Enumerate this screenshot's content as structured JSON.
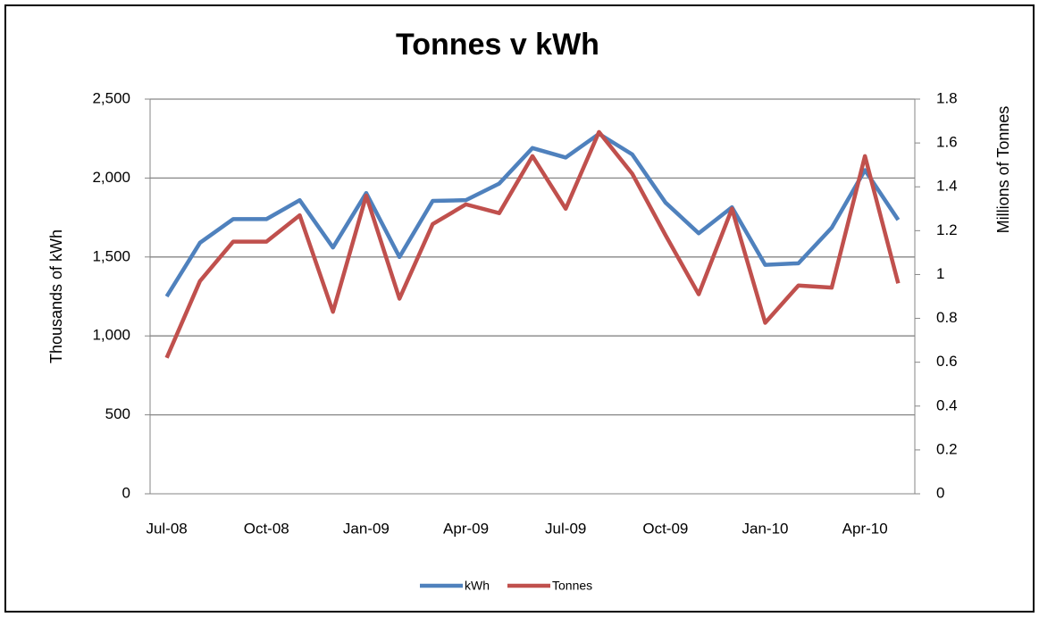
{
  "chart_data": {
    "type": "line",
    "title": "Tonnes v kWh",
    "y_label": "Thousands of kWh",
    "y2_label": "Millions of Tonnes",
    "categories": [
      "Jul-08",
      null,
      null,
      "Oct-08",
      null,
      null,
      "Jan-09",
      null,
      null,
      "Apr-09",
      null,
      null,
      "Jul-09",
      null,
      null,
      "Oct-09",
      null,
      null,
      "Jan-10",
      null,
      null,
      "Apr-10",
      null
    ],
    "series": [
      {
        "name": "kWh",
        "color": "#4f81bd",
        "values": [
          1250,
          1590,
          1740,
          1740,
          1860,
          1560,
          1905,
          1500,
          1855,
          1860,
          1965,
          2190,
          2130,
          2280,
          2150,
          1845,
          1650,
          1815,
          1450,
          1460,
          1685,
          2050,
          1735
        ]
      },
      {
        "name": "Tonnes",
        "color": "#c0504d",
        "axis": "y2",
        "values": [
          0.62,
          0.97,
          1.15,
          1.15,
          1.27,
          0.83,
          1.36,
          0.89,
          1.23,
          1.32,
          1.28,
          1.54,
          1.3,
          1.65,
          1.46,
          1.18,
          0.91,
          1.3,
          0.78,
          0.95,
          0.94,
          1.54,
          0.96
        ]
      }
    ],
    "ylim": [
      0,
      2500
    ],
    "yticks": [
      0,
      500,
      {
        "value": 1000,
        "label": "1,000"
      },
      {
        "value": 1500,
        "label": "1,500"
      },
      {
        "value": 2000,
        "label": "2,000"
      },
      {
        "value": 2500,
        "label": "2,500"
      }
    ],
    "y2lim": [
      0,
      1.8
    ],
    "y2ticks": [
      0,
      0.2,
      0.4,
      0.6,
      0.8,
      1,
      1.2,
      1.4,
      1.6,
      1.8
    ],
    "grid": true,
    "legend": "bottom"
  }
}
